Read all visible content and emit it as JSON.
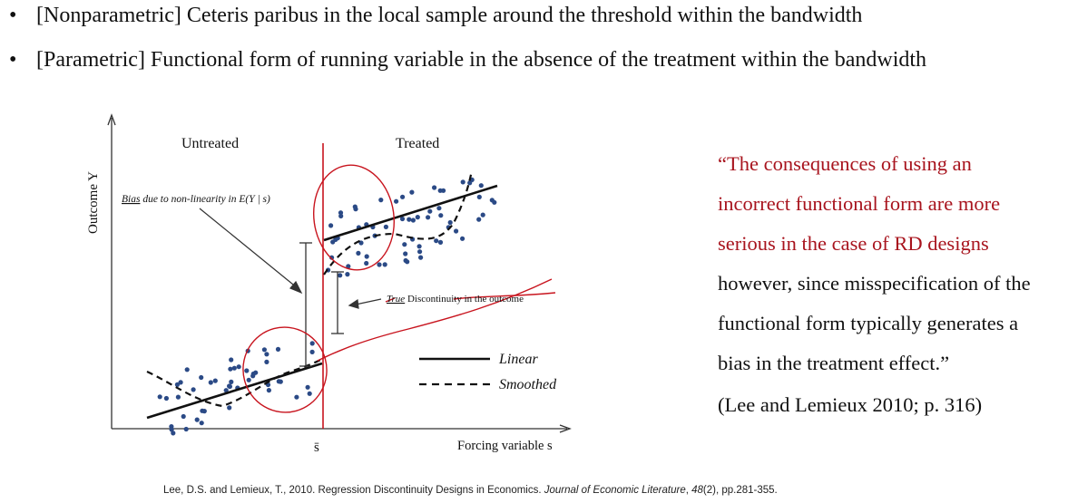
{
  "bullets": [
    {
      "mark": "•",
      "text": "[Nonparametric] Ceteris paribus in the local sample around the threshold within the bandwidth"
    },
    {
      "mark": "•",
      "text": "[Parametric] Functional form of running variable in the absence of the treatment within the bandwidth"
    }
  ],
  "figure": {
    "label_untreated": "Untreated",
    "label_treated": "Treated",
    "y_axis": "Outcome Y",
    "x_axis": "Forcing variable s",
    "threshold": "s̄",
    "bias_prefix": "Bias",
    "bias_rest": " due to non-linearity in E(Y | s)",
    "discontinuity_prefix": "True",
    "discontinuity_rest": " Discontinuity in the outcome",
    "legend": [
      {
        "label": "Linear",
        "style": "solid"
      },
      {
        "label": "Smoothed",
        "style": "dashed"
      }
    ],
    "colors": {
      "annotation": "#c8141e",
      "points": "#2b4a86",
      "lines": "#111111"
    }
  },
  "quote": {
    "lines_red": [
      "“The consequences of using an",
      "incorrect functional form are more",
      "serious in the case of RD designs"
    ],
    "lines_black": [
      "however, since misspecification of the",
      "functional form typically generates a",
      "bias in the treatment effect.”"
    ],
    "citation": "(Lee and Lemieux 2010; p. 316)"
  },
  "reference": {
    "pre": "Lee, D.S. and Lemieux, T., 2010. Regression Discontinuity Designs in Economics. ",
    "journal": "Journal of Economic Literature",
    "mid": ", ",
    "volume": "48",
    "post": "(2), pp.281-355."
  }
}
